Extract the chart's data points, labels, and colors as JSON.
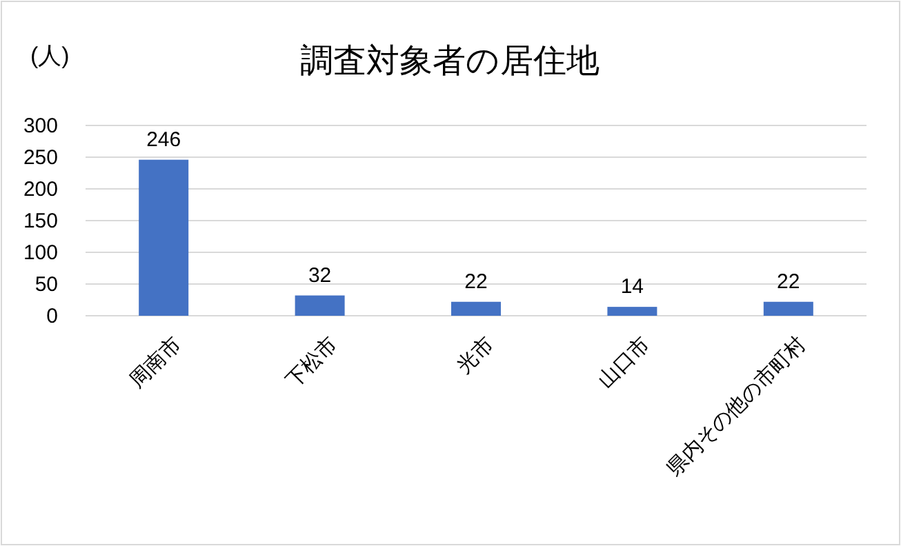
{
  "chart_data": {
    "type": "bar",
    "title": "調査対象者の居住地",
    "ylabel": "(人)",
    "categories": [
      "周南市",
      "下松市",
      "光市",
      "山口市",
      "県内その他の市町村"
    ],
    "values": [
      246,
      32,
      22,
      14,
      22
    ],
    "color": "#4472c4",
    "ylim": [
      0,
      300
    ],
    "yticks": [
      0,
      50,
      100,
      150,
      200,
      250,
      300
    ],
    "grid": "y",
    "data_labels": true
  }
}
